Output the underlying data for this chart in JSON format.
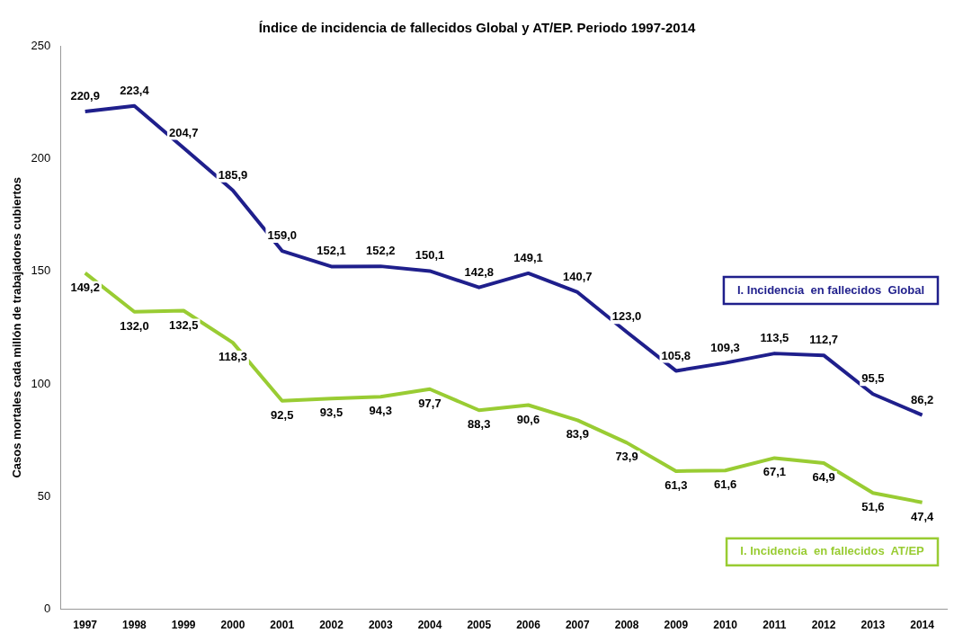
{
  "chart_data": {
    "type": "line",
    "title": "Índice de incidencia de fallecidos Global y AT/EP. Periodo 1997-2014",
    "ylabel": "Casos mortales cada millón de trabajadores cubiertos",
    "categories": [
      "1997",
      "1998",
      "1999",
      "2000",
      "2001",
      "2002",
      "2003",
      "2004",
      "2005",
      "2006",
      "2007",
      "2008",
      "2009",
      "2010",
      "2011",
      "2012",
      "2013",
      "2014"
    ],
    "series": [
      {
        "name": "I. Incidencia  en fallecidos  Global",
        "color": "#1f1f8c",
        "values": [
          220.9,
          223.4,
          204.7,
          185.9,
          159.0,
          152.1,
          152.2,
          150.1,
          142.8,
          149.1,
          140.7,
          123.0,
          105.8,
          109.3,
          113.5,
          112.7,
          95.5,
          86.2
        ],
        "value_labels": [
          "220,9",
          "223,4",
          "204,7",
          "185,9",
          "159,0",
          "152,1",
          "152,2",
          "150,1",
          "142,8",
          "149,1",
          "140,7",
          "123,0",
          "105,8",
          "109,3",
          "113,5",
          "112,7",
          "95,5",
          "86,2"
        ]
      },
      {
        "name": "I. Incidencia  en fallecidos  AT/EP",
        "color": "#99cc33",
        "values": [
          149.2,
          132.0,
          132.5,
          118.3,
          92.5,
          93.5,
          94.3,
          97.7,
          88.3,
          90.6,
          83.9,
          73.9,
          61.3,
          61.6,
          67.1,
          64.9,
          51.6,
          47.4
        ],
        "value_labels": [
          "149,2",
          "132,0",
          "132,5",
          "118,3",
          "92,5",
          "93,5",
          "94,3",
          "97,7",
          "88,3",
          "90,6",
          "83,9",
          "73,9",
          "61,3",
          "61,6",
          "67,1",
          "64,9",
          "51,6",
          "47,4"
        ]
      }
    ],
    "ylim": [
      0,
      250
    ],
    "yticks": [
      0,
      50,
      100,
      150,
      200,
      250
    ],
    "grid": false,
    "legend": false,
    "marker": "none",
    "line_style": "solid"
  }
}
